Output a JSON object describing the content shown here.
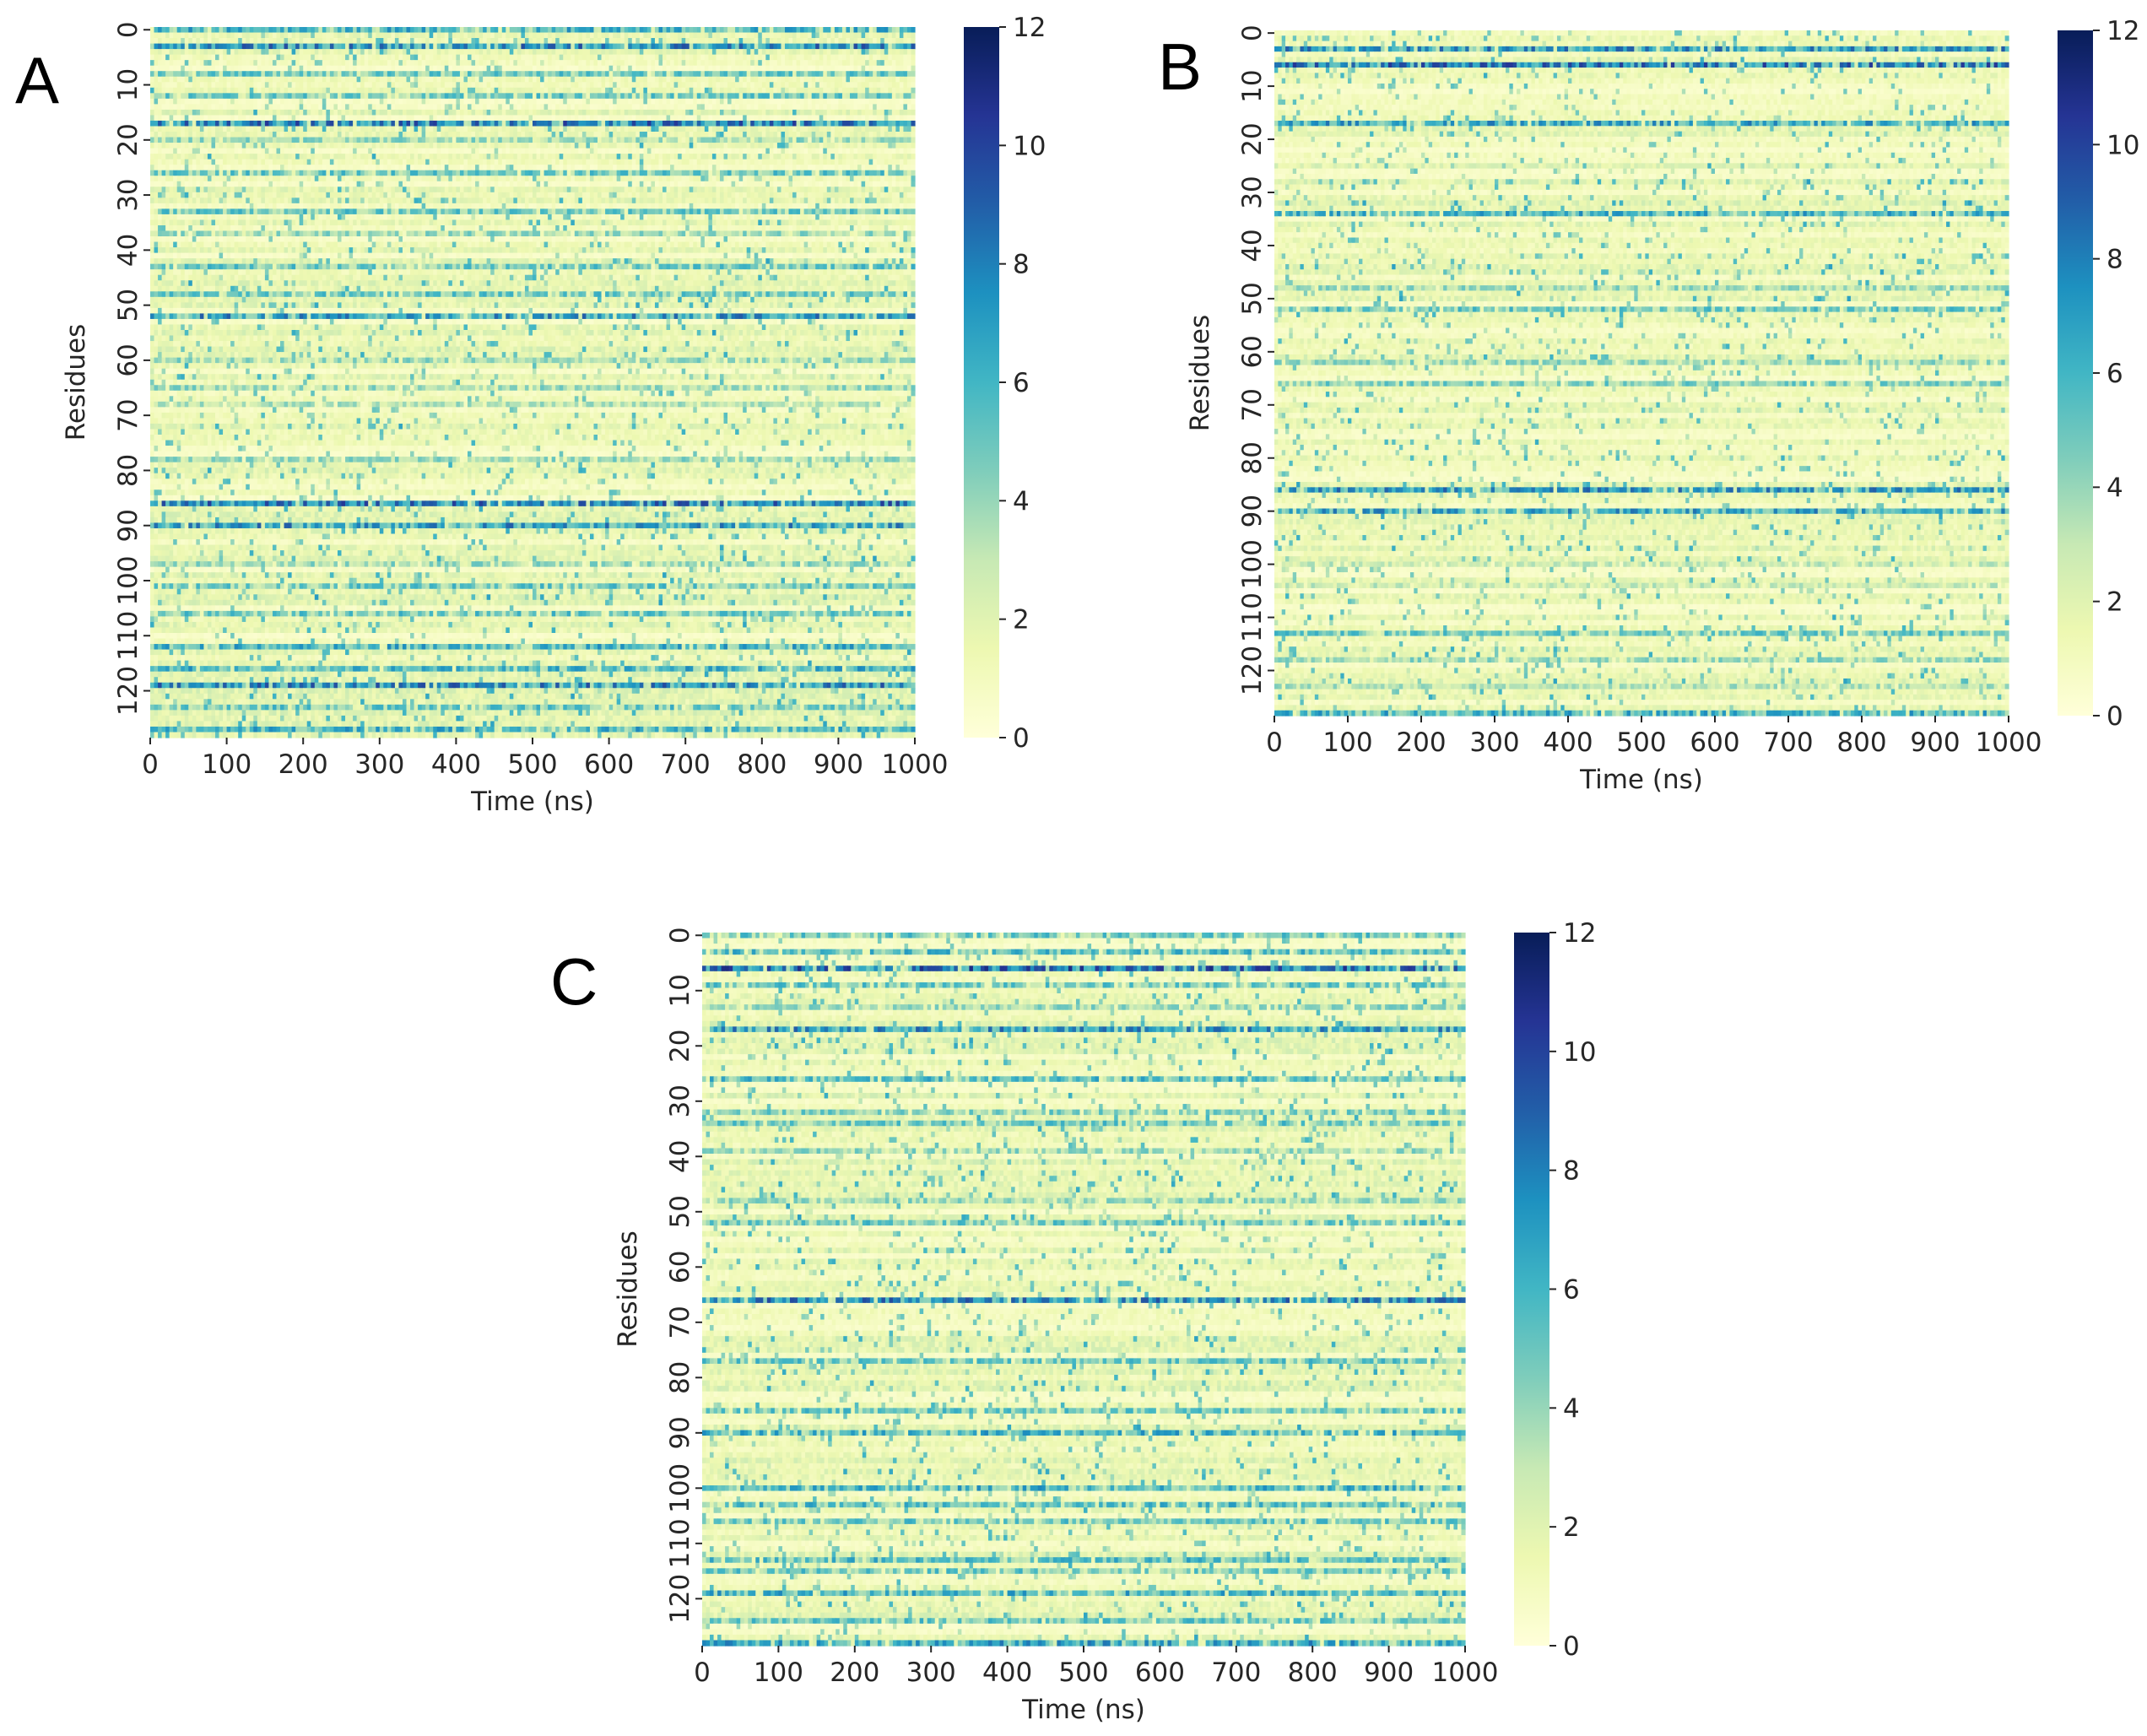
{
  "chart_data": [
    {
      "type": "heatmap",
      "panel_label": "A",
      "xlabel": "Time (ns)",
      "ylabel": "Residues",
      "x_ticks": [
        0,
        100,
        200,
        300,
        400,
        500,
        600,
        700,
        800,
        900,
        1000
      ],
      "y_ticks": [
        0,
        10,
        20,
        30,
        40,
        50,
        60,
        70,
        80,
        90,
        100,
        110,
        120
      ],
      "xlim": [
        0,
        1000
      ],
      "ylim": [
        0,
        128
      ],
      "colorbar": {
        "min": 0,
        "max": 12,
        "ticks": [
          0,
          2,
          4,
          6,
          8,
          10,
          12
        ],
        "colormap": "YlGnBu"
      },
      "strong_rows": [
        {
          "residue": 0,
          "value": 6
        },
        {
          "residue": 3,
          "value": 7.5
        },
        {
          "residue": 8,
          "value": 5
        },
        {
          "residue": 12,
          "value": 5
        },
        {
          "residue": 17,
          "value": 8
        },
        {
          "residue": 20,
          "value": 4
        },
        {
          "residue": 26,
          "value": 5
        },
        {
          "residue": 33,
          "value": 5
        },
        {
          "residue": 37,
          "value": 4
        },
        {
          "residue": 43,
          "value": 5
        },
        {
          "residue": 48,
          "value": 5
        },
        {
          "residue": 52,
          "value": 7
        },
        {
          "residue": 60,
          "value": 4
        },
        {
          "residue": 65,
          "value": 4
        },
        {
          "residue": 68,
          "value": 3.5
        },
        {
          "residue": 78,
          "value": 4
        },
        {
          "residue": 86,
          "value": 8
        },
        {
          "residue": 90,
          "value": 7
        },
        {
          "residue": 97,
          "value": 4
        },
        {
          "residue": 101,
          "value": 5
        },
        {
          "residue": 106,
          "value": 5
        },
        {
          "residue": 112,
          "value": 6
        },
        {
          "residue": 116,
          "value": 6
        },
        {
          "residue": 119,
          "value": 7.5
        },
        {
          "residue": 123,
          "value": 5
        },
        {
          "residue": 127,
          "value": 6
        }
      ]
    },
    {
      "type": "heatmap",
      "panel_label": "B",
      "xlabel": "Time (ns)",
      "ylabel": "Residues",
      "x_ticks": [
        0,
        100,
        200,
        300,
        400,
        500,
        600,
        700,
        800,
        900,
        1000
      ],
      "y_ticks": [
        0,
        10,
        20,
        30,
        40,
        50,
        60,
        70,
        80,
        90,
        100,
        110,
        120
      ],
      "xlim": [
        0,
        1000
      ],
      "ylim": [
        0,
        128
      ],
      "colorbar": {
        "min": 0,
        "max": 12,
        "ticks": [
          0,
          2,
          4,
          6,
          8,
          10,
          12
        ],
        "colormap": "YlGnBu"
      },
      "strong_rows": [
        {
          "residue": 3,
          "value": 7
        },
        {
          "residue": 6,
          "value": 8
        },
        {
          "residue": 17,
          "value": 6.5
        },
        {
          "residue": 34,
          "value": 6
        },
        {
          "residue": 48,
          "value": 4
        },
        {
          "residue": 52,
          "value": 5
        },
        {
          "residue": 62,
          "value": 4
        },
        {
          "residue": 66,
          "value": 4.5
        },
        {
          "residue": 86,
          "value": 7
        },
        {
          "residue": 90,
          "value": 6.5
        },
        {
          "residue": 100,
          "value": 3
        },
        {
          "residue": 104,
          "value": 3
        },
        {
          "residue": 113,
          "value": 5
        },
        {
          "residue": 118,
          "value": 4
        },
        {
          "residue": 123,
          "value": 3.5
        },
        {
          "residue": 128,
          "value": 6
        }
      ]
    },
    {
      "type": "heatmap",
      "panel_label": "C",
      "xlabel": "Time (ns)",
      "ylabel": "Residues",
      "x_ticks": [
        0,
        100,
        200,
        300,
        400,
        500,
        600,
        700,
        800,
        900,
        1000
      ],
      "y_ticks": [
        0,
        10,
        20,
        30,
        40,
        50,
        60,
        70,
        80,
        90,
        100,
        110,
        120
      ],
      "xlim": [
        0,
        1000
      ],
      "ylim": [
        0,
        128
      ],
      "colorbar": {
        "min": 0,
        "max": 12,
        "ticks": [
          0,
          2,
          4,
          6,
          8,
          10,
          12
        ],
        "colormap": "YlGnBu"
      },
      "strong_rows": [
        {
          "residue": 0,
          "value": 5
        },
        {
          "residue": 3,
          "value": 5.5
        },
        {
          "residue": 6,
          "value": 8.5
        },
        {
          "residue": 9,
          "value": 5
        },
        {
          "residue": 13,
          "value": 4
        },
        {
          "residue": 17,
          "value": 7
        },
        {
          "residue": 26,
          "value": 5.5
        },
        {
          "residue": 32,
          "value": 4.5
        },
        {
          "residue": 34,
          "value": 5
        },
        {
          "residue": 39,
          "value": 4
        },
        {
          "residue": 48,
          "value": 4
        },
        {
          "residue": 52,
          "value": 5
        },
        {
          "residue": 66,
          "value": 7.5
        },
        {
          "residue": 77,
          "value": 5
        },
        {
          "residue": 86,
          "value": 5
        },
        {
          "residue": 90,
          "value": 6
        },
        {
          "residue": 100,
          "value": 6
        },
        {
          "residue": 103,
          "value": 5.5
        },
        {
          "residue": 106,
          "value": 5
        },
        {
          "residue": 113,
          "value": 5.5
        },
        {
          "residue": 115,
          "value": 5
        },
        {
          "residue": 119,
          "value": 6
        },
        {
          "residue": 124,
          "value": 5
        },
        {
          "residue": 128,
          "value": 6.5
        }
      ]
    }
  ]
}
